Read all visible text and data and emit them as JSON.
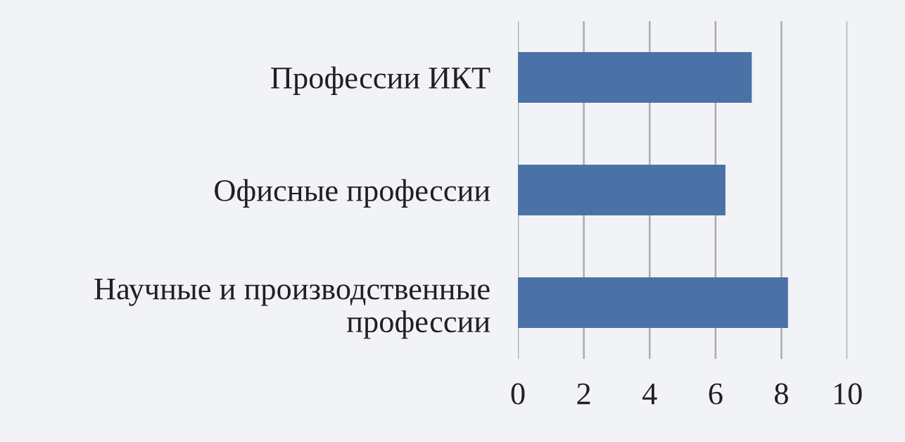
{
  "chart_data": {
    "type": "bar",
    "orientation": "horizontal",
    "categories": [
      "Профессии ИКТ",
      "Офисные профессии",
      "Научные и производственные\nпрофессии"
    ],
    "values": [
      7.1,
      6.3,
      8.2
    ],
    "color": "#4a72a6",
    "xlim": [
      0,
      10
    ],
    "xticks": [
      0,
      2,
      4,
      6,
      8,
      10
    ],
    "grid": "x",
    "legend": false
  }
}
